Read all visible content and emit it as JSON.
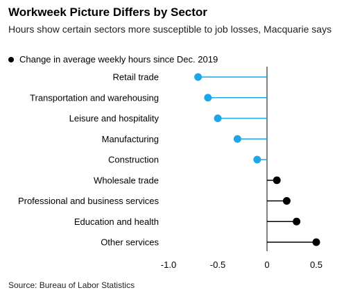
{
  "chart_data": {
    "type": "lollipop",
    "title": "Workweek Picture Differs by Sector",
    "subtitle": "Hours show certain sectors more susceptible to job losses, Macquarie says",
    "legend": [
      "Change in average weekly hours since Dec. 2019"
    ],
    "categories": [
      "Retail trade",
      "Transportation and warehousing",
      "Leisure and hospitality",
      "Manufacturing",
      "Construction",
      "Wholesale trade",
      "Professional and business services",
      "Education and health",
      "Other services"
    ],
    "values": [
      -0.7,
      -0.6,
      -0.5,
      -0.3,
      -0.1,
      0.1,
      0.2,
      0.3,
      0.5
    ],
    "xlim": [
      -1.0,
      0.5
    ],
    "xticks": [
      -1.0,
      -0.5,
      0,
      0.5
    ],
    "xtick_labels": [
      "-1.0",
      "-0.5",
      "0",
      "0.5"
    ],
    "colors": {
      "negative": "#1DA6E8",
      "positive": "#000000"
    },
    "source": "Source: Bureau of Labor Statistics"
  }
}
